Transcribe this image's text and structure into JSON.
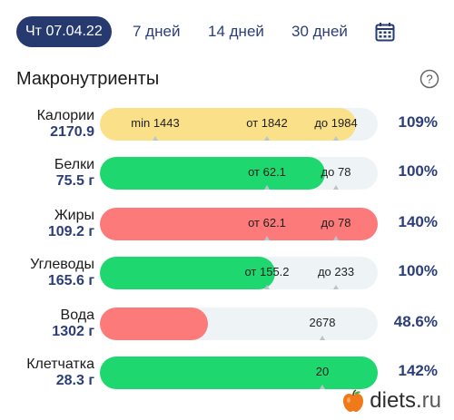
{
  "tabs": [
    {
      "label": "Чт 07.04.22",
      "active": true
    },
    {
      "label": "7 дней",
      "active": false
    },
    {
      "label": "14 дней",
      "active": false
    },
    {
      "label": "30 дней",
      "active": false
    }
  ],
  "icons": {
    "calendar": "calendar-icon",
    "help": "help-icon",
    "logo": "apple-logo-icon"
  },
  "section_title": "Макронутриенты",
  "colors": {
    "accent": "#263a6f",
    "yellow": "#fbe08a",
    "green": "#1ed86f",
    "red": "#fd7a7a",
    "track": "#eef4f6"
  },
  "nutrients": [
    {
      "name": "Калории",
      "value": "2170.9",
      "percent": "109%",
      "fill": 0.92,
      "color": "yellow",
      "marks": [
        {
          "text": "min 1443",
          "pos": 0.2
        },
        {
          "text": "от 1842",
          "pos": 0.6
        },
        {
          "text": "до 1984",
          "pos": 0.85
        }
      ]
    },
    {
      "name": "Белки",
      "value": "75.5 г",
      "percent": "100%",
      "fill": 0.81,
      "color": "green",
      "marks": [
        {
          "text": "от 62.1",
          "pos": 0.6
        },
        {
          "text": "до 78",
          "pos": 0.85
        }
      ]
    },
    {
      "name": "Жиры",
      "value": "109.2 г",
      "percent": "140%",
      "fill": 1.0,
      "color": "red",
      "marks": [
        {
          "text": "от 62.1",
          "pos": 0.6
        },
        {
          "text": "до 78",
          "pos": 0.85
        }
      ]
    },
    {
      "name": "Углеводы",
      "value": "165.6 г",
      "percent": "100%",
      "fill": 0.63,
      "color": "green",
      "marks": [
        {
          "text": "от 155.2",
          "pos": 0.6
        },
        {
          "text": "до 233",
          "pos": 0.85
        }
      ]
    },
    {
      "name": "Вода",
      "value": "1302 г",
      "percent": "48.6%",
      "fill": 0.39,
      "color": "red",
      "marks": [
        {
          "text": "2678",
          "pos": 0.8
        }
      ]
    },
    {
      "name": "Клетчатка",
      "value": "28.3 г",
      "percent": "142%",
      "fill": 1.0,
      "color": "green",
      "marks": [
        {
          "text": "20",
          "pos": 0.8
        }
      ]
    }
  ],
  "logo": {
    "name": "diets",
    "dot": ".",
    "tld": "ru"
  }
}
